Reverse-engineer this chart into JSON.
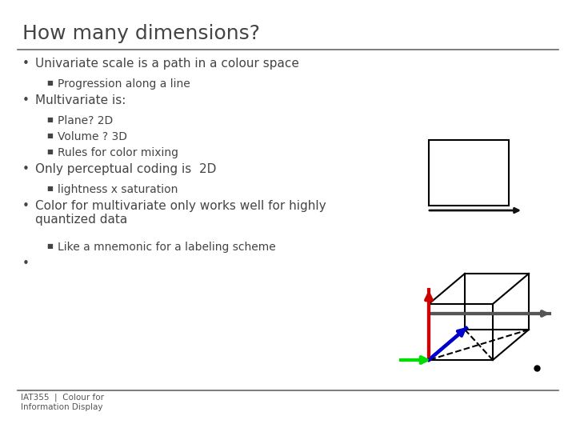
{
  "title": "How many dimensions?",
  "title_fontsize": 18,
  "title_color": "#444444",
  "background_color": "#ffffff",
  "separator_color": "#666666",
  "bullet_color": "#444444",
  "bullet_points": [
    {
      "level": 0,
      "text": "Univariate scale is a path in a colour space"
    },
    {
      "level": 1,
      "text": "Progression along a line"
    },
    {
      "level": 0,
      "text": "Multivariate is:"
    },
    {
      "level": 1,
      "text": "Plane? 2D"
    },
    {
      "level": 1,
      "text": "Volume ? 3D"
    },
    {
      "level": 1,
      "text": "Rules for color mixing"
    },
    {
      "level": 0,
      "text": "Only perceptual coding is  2D"
    },
    {
      "level": 1,
      "text": "lightness x saturation"
    },
    {
      "level": 0,
      "text": "Color for multivariate only works well for highly\nquantized data"
    },
    {
      "level": 1,
      "text": "Like a mnemonic for a labeling scheme"
    },
    {
      "level": 0,
      "text": ""
    }
  ],
  "footer_text": "IAT355  |  Colour for\nInformation Display",
  "footer_color": "#555555",
  "box_color": "#000000",
  "cube_color": "#000000",
  "arrow_color": "#111111",
  "green_arrow_color": "#00dd00",
  "red_arrow_color": "#cc0000",
  "blue_arrow_color": "#0000cc",
  "line1d_color": "#555555",
  "text_fontsize": 11,
  "sub_fontsize": 10
}
